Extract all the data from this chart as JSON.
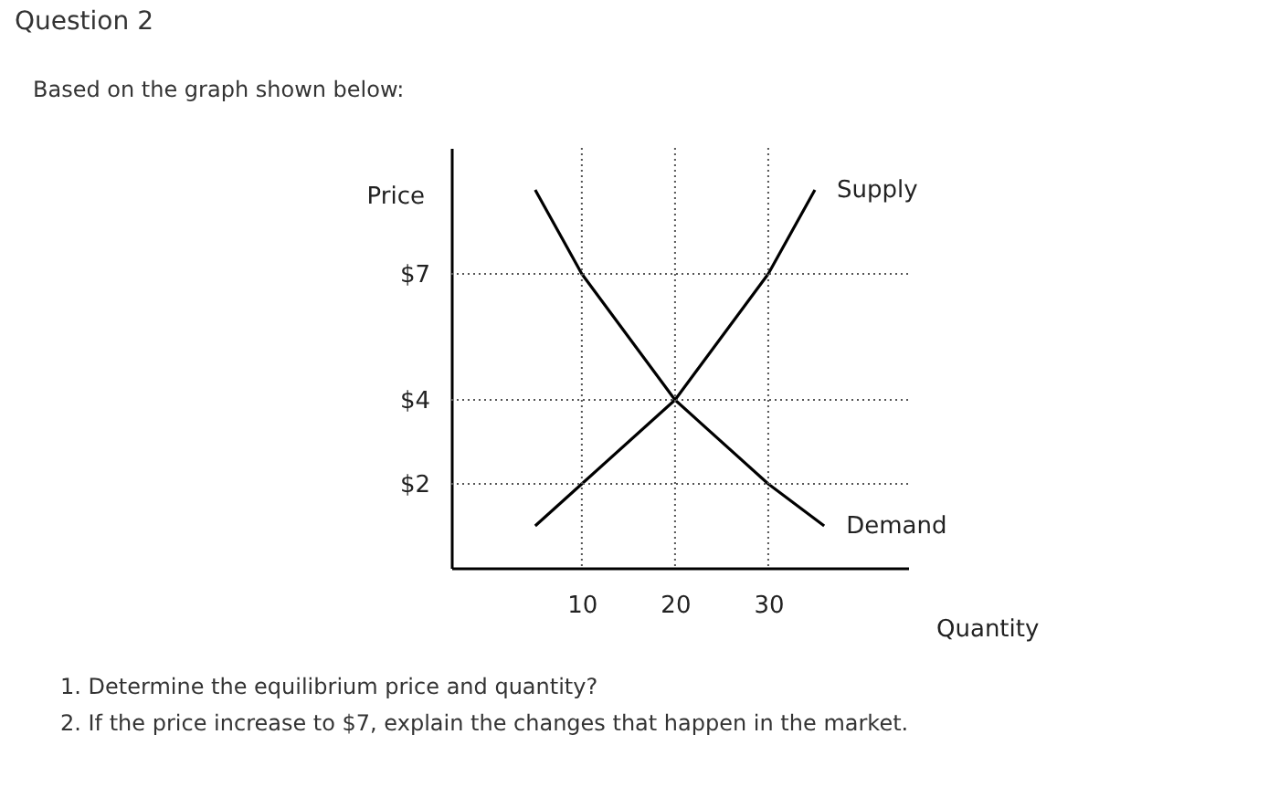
{
  "chart_data": {
    "type": "line",
    "title": "Question 2",
    "subtitle": "Based on the graph shown below:",
    "xlabel": "Quantity",
    "ylabel": "Price",
    "xlim": [
      -4,
      45
    ],
    "xticks": [
      10,
      20,
      30
    ],
    "ylim": [
      0,
      10
    ],
    "yticks": [
      {
        "value": 7,
        "label": "$7"
      },
      {
        "value": 4,
        "label": "$4"
      },
      {
        "value": 2,
        "label": "$2"
      }
    ],
    "series": [
      {
        "name": "Supply",
        "color": "#000000",
        "x": [
          5,
          10,
          20,
          30,
          35
        ],
        "values": [
          1,
          2,
          4,
          7,
          9
        ]
      },
      {
        "name": "Demand",
        "color": "#000000",
        "x": [
          5,
          10,
          20,
          30,
          36
        ],
        "values": [
          9,
          7,
          4,
          2,
          1
        ]
      }
    ],
    "ref_lines": [
      {
        "axis": "y",
        "value": 7,
        "line_style": "dotted",
        "color": "#555555"
      },
      {
        "axis": "y",
        "value": 4,
        "line_style": "dotted",
        "color": "#555555"
      },
      {
        "axis": "y",
        "value": 2,
        "line_style": "dotted",
        "color": "#555555"
      },
      {
        "axis": "x",
        "value": 10,
        "line_style": "dotted",
        "color": "#555555"
      },
      {
        "axis": "x",
        "value": 20,
        "line_style": "dotted",
        "color": "#555555"
      },
      {
        "axis": "x",
        "value": 30,
        "line_style": "dotted",
        "color": "#555555"
      }
    ],
    "grid": false,
    "legend": false,
    "line_style": "solid",
    "marker": "none",
    "annotations": [
      "1. Determine the equilibrium price and quantity?",
      "2. If the price increase to $7, explain the changes that happen in the market."
    ]
  }
}
